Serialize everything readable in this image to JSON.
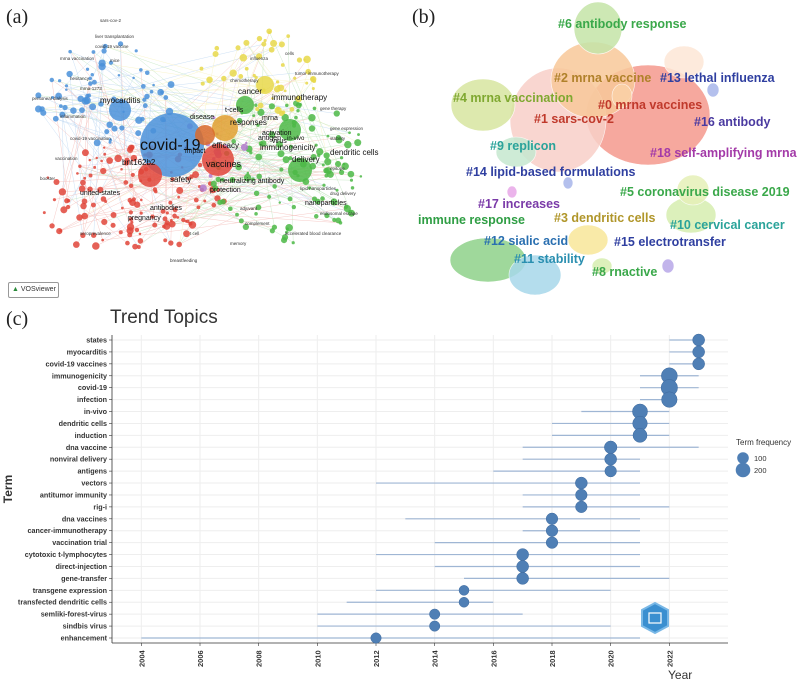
{
  "panels": {
    "a": "(a)",
    "b": "(b)",
    "c": "(c)"
  },
  "vosviewer": {
    "badge": "VOSviewer",
    "labels_large": [
      "covid-19",
      "vaccines",
      "bnt162b2",
      "safety",
      "myocarditis",
      "immunogenicity",
      "mrna",
      "delivery",
      "dendritic cells",
      "cancer",
      "immunotherapy",
      "antibodies",
      "pregnancy",
      "responses",
      "efficacy",
      "protection",
      "neutralizing antibody",
      "antigen",
      "virus",
      "activation",
      "nanoparticles",
      "in-vivo",
      "t-cells",
      "disease",
      "impact",
      "united-states"
    ],
    "labels_small": [
      "mrna vaccination",
      "covid-19 vaccination",
      "hesitancy",
      "inflammation",
      "peritoneal dialysis",
      "liver transplantation",
      "mrna-1273",
      "covid-19 vaccine",
      "lipid nanoparticles",
      "chemotherapy",
      "tumor immunotherapy",
      "accelerated blood clearance",
      "endosomal escape",
      "drug delivery",
      "vaccination",
      "influenza",
      "sars-cov-2",
      "gene therapy",
      "adjuvant",
      "complement",
      "breastfeeding",
      "seroprevalence",
      "booster",
      "memory",
      "t cell",
      "epitope",
      "mice",
      "cells",
      "gene expression",
      "stability"
    ]
  },
  "clusters": [
    {
      "id": "c0",
      "label": "#0 mrna vaccines",
      "color": "#c0392b"
    },
    {
      "id": "c1",
      "label": "#1 sars-cov-2",
      "color": "#c0392b"
    },
    {
      "id": "c2",
      "label": "#2 mrna vaccine",
      "color": "#b0812a"
    },
    {
      "id": "c3",
      "label": "#3 dendritic cells",
      "color": "#b0962a"
    },
    {
      "id": "c4",
      "label": "#4 mrna vaccination",
      "color": "#7fa830"
    },
    {
      "id": "c5",
      "label": "#5 coronavirus disease 2019",
      "color": "#3aa84a"
    },
    {
      "id": "c6",
      "label": "#6 antibody response",
      "color": "#3aa84a"
    },
    {
      "id": "c7",
      "label": "immune response",
      "color": "#2f9e44"
    },
    {
      "id": "c8",
      "label": "#8 rnactive",
      "color": "#3aa84a"
    },
    {
      "id": "c9",
      "label": "#9 replicon",
      "color": "#2aa39a"
    },
    {
      "id": "c10",
      "label": "#10 cervical cancer",
      "color": "#2aa39a"
    },
    {
      "id": "c11",
      "label": "#11 stability",
      "color": "#2a8fb0"
    },
    {
      "id": "c12",
      "label": "#12 sialic acid",
      "color": "#2a6fb0"
    },
    {
      "id": "c13",
      "label": "#13 lethal influenza",
      "color": "#2f3fa0"
    },
    {
      "id": "c14",
      "label": "#14 lipid-based formulations",
      "color": "#2f3fa0"
    },
    {
      "id": "c15",
      "label": "#15 electrotransfer",
      "color": "#2f3fa0"
    },
    {
      "id": "c16",
      "label": "#16 antibody",
      "color": "#4a3aa0"
    },
    {
      "id": "c17",
      "label": "#17 increases",
      "color": "#7a3aa8"
    },
    {
      "id": "c18",
      "label": "#18 self-amplifying mrna",
      "color": "#a33aa8"
    }
  ],
  "chart_data": {
    "type": "scatter",
    "title": "Trend Topics",
    "xlabel": "Year",
    "ylabel": "Term",
    "xlim": [
      2003,
      2024
    ],
    "x_ticks": [
      "2004",
      "2006",
      "2008",
      "2010",
      "2012",
      "2014",
      "2016",
      "2018",
      "2020",
      "2022"
    ],
    "legend_title": "Term frequency",
    "legend_values": [
      "100",
      "200"
    ],
    "terms": [
      {
        "term": "states",
        "median": 2023,
        "q1": 2022,
        "q3": 2023,
        "freq": 110
      },
      {
        "term": "myocarditis",
        "median": 2023,
        "q1": 2022,
        "q3": 2023,
        "freq": 110
      },
      {
        "term": "covid-19 vaccines",
        "median": 2023,
        "q1": 2022,
        "q3": 2023,
        "freq": 110
      },
      {
        "term": "immunogenicity",
        "median": 2022,
        "q1": 2021,
        "q3": 2023,
        "freq": 260
      },
      {
        "term": "covid-19",
        "median": 2022,
        "q1": 2021,
        "q3": 2023,
        "freq": 280
      },
      {
        "term": "infection",
        "median": 2022,
        "q1": 2021,
        "q3": 2022,
        "freq": 240
      },
      {
        "term": "in-vivo",
        "median": 2021,
        "q1": 2019,
        "q3": 2022,
        "freq": 220
      },
      {
        "term": "dendritic cells",
        "median": 2021,
        "q1": 2018,
        "q3": 2022,
        "freq": 200
      },
      {
        "term": "induction",
        "median": 2021,
        "q1": 2018,
        "q3": 2022,
        "freq": 180
      },
      {
        "term": "dna vaccine",
        "median": 2020,
        "q1": 2017,
        "q3": 2023,
        "freq": 130
      },
      {
        "term": "nonviral delivery",
        "median": 2020,
        "q1": 2017,
        "q3": 2021,
        "freq": 110
      },
      {
        "term": "antigens",
        "median": 2020,
        "q1": 2016,
        "q3": 2021,
        "freq": 100
      },
      {
        "term": "vectors",
        "median": 2019,
        "q1": 2012,
        "q3": 2021,
        "freq": 110
      },
      {
        "term": "antitumor immunity",
        "median": 2019,
        "q1": 2017,
        "q3": 2021,
        "freq": 100
      },
      {
        "term": "rig-i",
        "median": 2019,
        "q1": 2017,
        "q3": 2022,
        "freq": 100
      },
      {
        "term": "dna vaccines",
        "median": 2018,
        "q1": 2013,
        "q3": 2021,
        "freq": 100
      },
      {
        "term": "cancer-immunotherapy",
        "median": 2018,
        "q1": 2017,
        "q3": 2021,
        "freq": 100
      },
      {
        "term": "vaccination trial",
        "median": 2018,
        "q1": 2014,
        "q3": 2021,
        "freq": 100
      },
      {
        "term": "cytotoxic t-lymphocytes",
        "median": 2017,
        "q1": 2012,
        "q3": 2021,
        "freq": 110
      },
      {
        "term": "direct-injection",
        "median": 2017,
        "q1": 2014,
        "q3": 2021,
        "freq": 110
      },
      {
        "term": "gene-transfer",
        "median": 2017,
        "q1": 2015,
        "q3": 2022,
        "freq": 110
      },
      {
        "term": "transgene expression",
        "median": 2015,
        "q1": 2012,
        "q3": 2020,
        "freq": 60
      },
      {
        "term": "transfected dendritic cells",
        "median": 2015,
        "q1": 2011,
        "q3": 2016,
        "freq": 60
      },
      {
        "term": "semliki-forest-virus",
        "median": 2014,
        "q1": 2010,
        "q3": 2017,
        "freq": 70
      },
      {
        "term": "sindbis virus",
        "median": 2014,
        "q1": 2010,
        "q3": 2020,
        "freq": 70
      },
      {
        "term": "enhancement",
        "median": 2012,
        "q1": 2004,
        "q3": 2021,
        "freq": 70
      }
    ]
  }
}
